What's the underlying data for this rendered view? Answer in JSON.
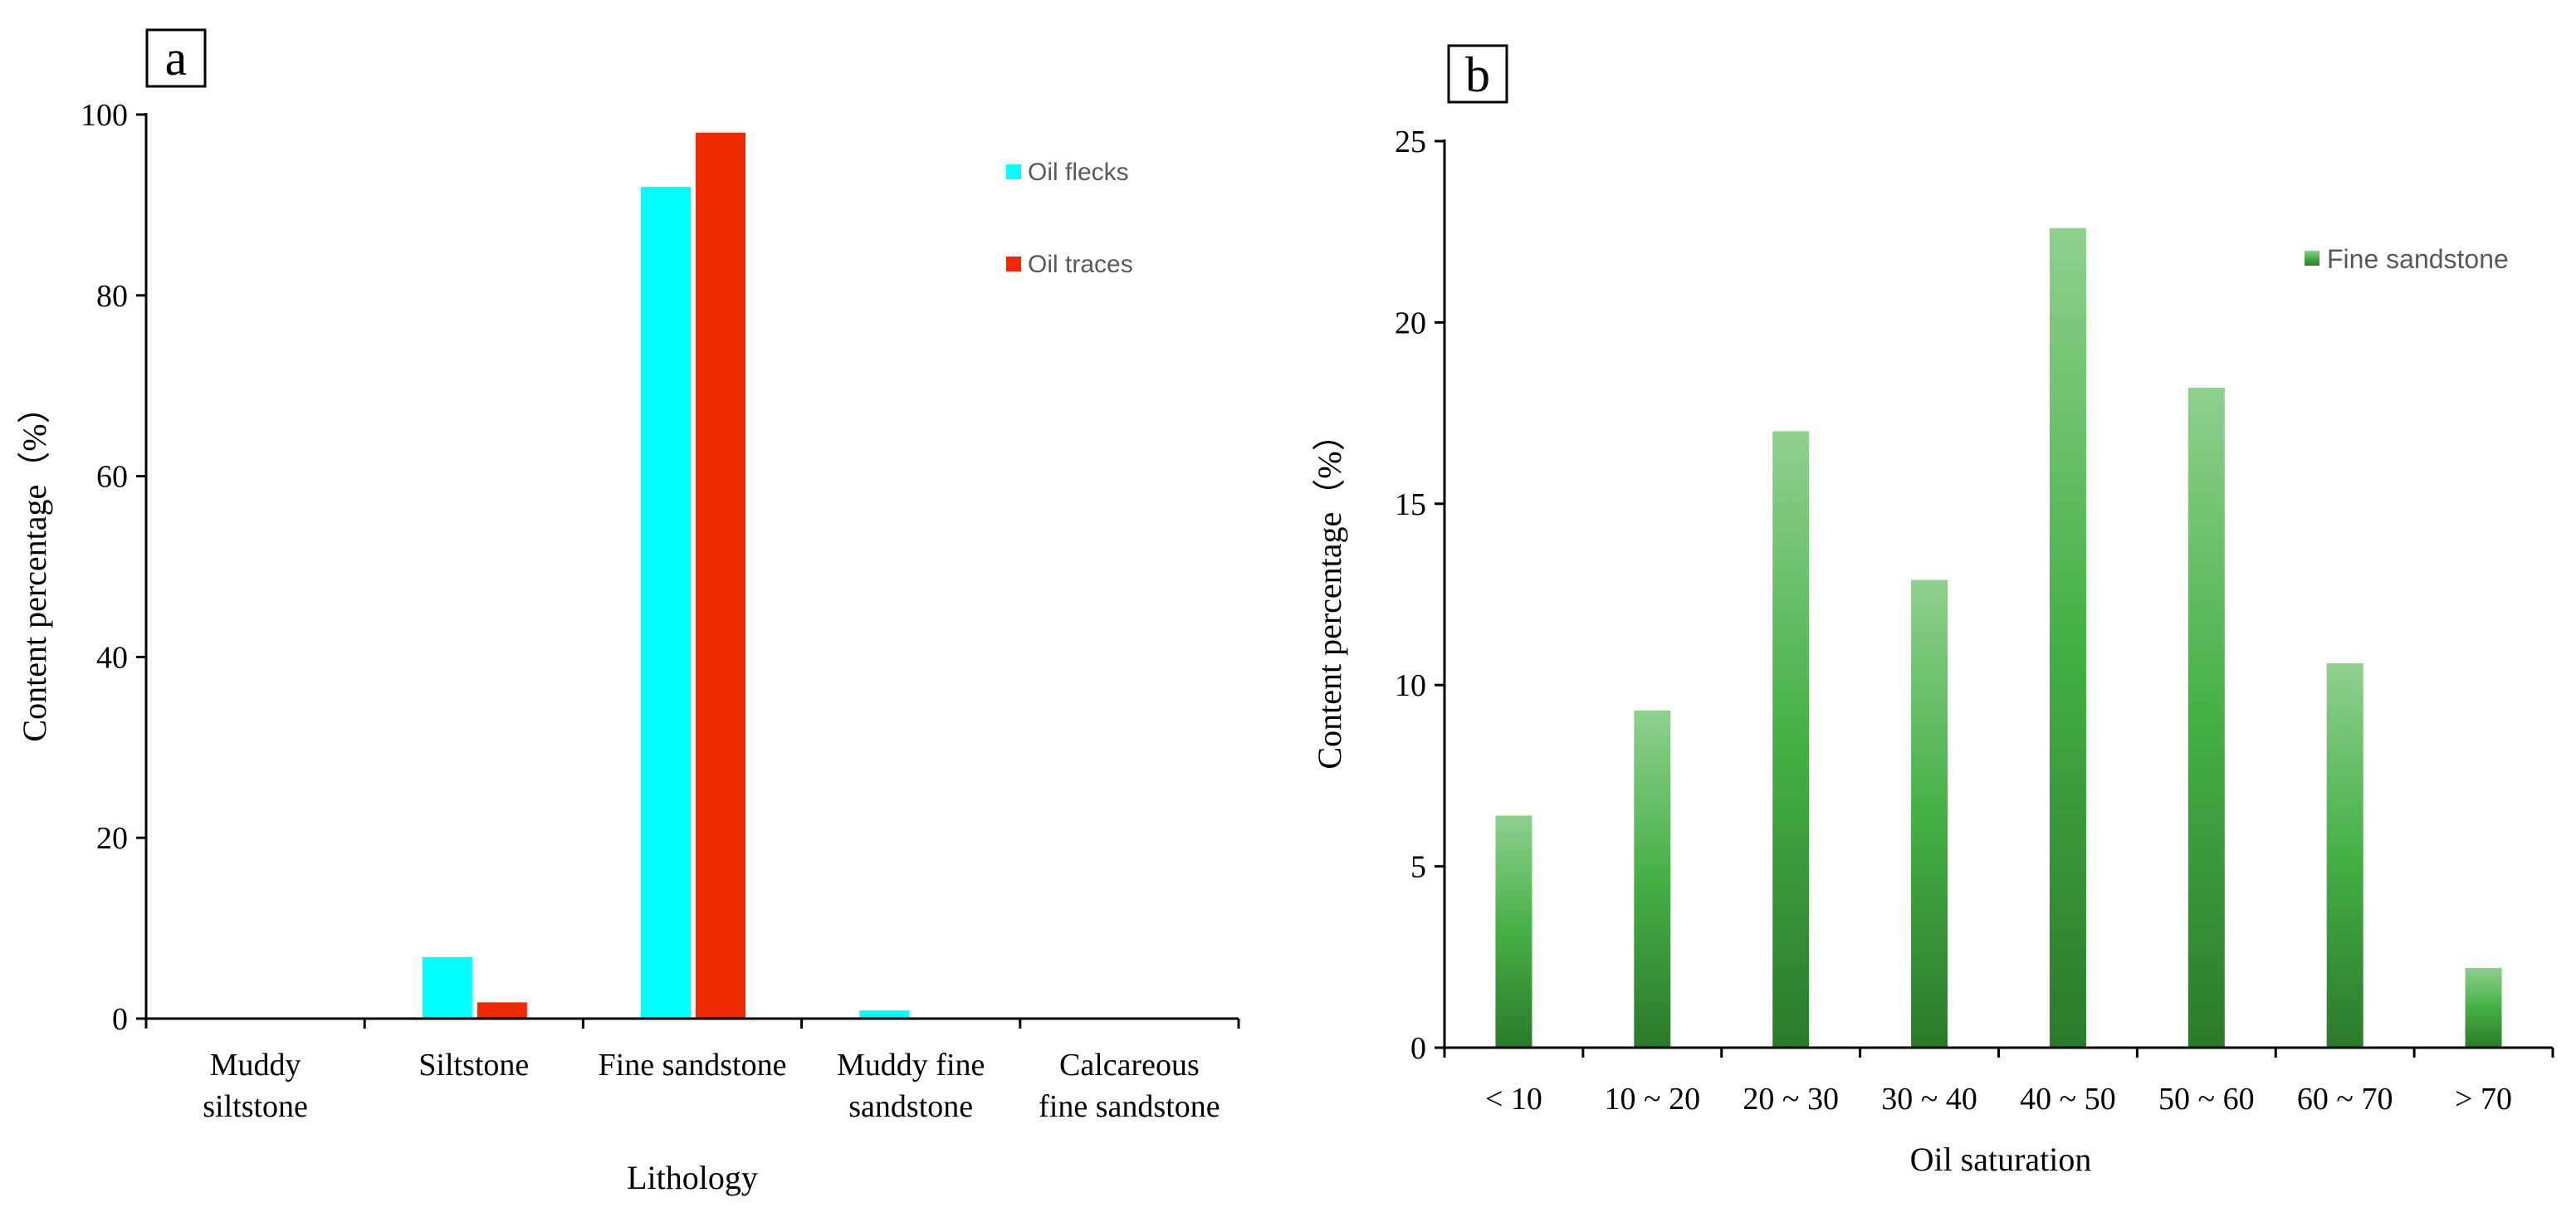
{
  "chart_data": [
    {
      "panel_label": "a",
      "type": "bar",
      "title": "",
      "xlabel": "Lithology",
      "ylabel": "Content percentage（%）",
      "ylim": [
        0,
        100
      ],
      "yticks": [
        "0",
        "20",
        "40",
        "60",
        "80",
        "100"
      ],
      "categories": [
        [
          "Muddy",
          "siltstone"
        ],
        [
          "Siltstone"
        ],
        [
          "Fine sandstone"
        ],
        [
          "Muddy fine",
          "sandstone"
        ],
        [
          "Calcareous",
          "fine sandstone"
        ]
      ],
      "series": [
        {
          "name": "Oil flecks",
          "color": "#00FFFF",
          "values": [
            0,
            6.8,
            92,
            0.9,
            0
          ]
        },
        {
          "name": "Oil traces",
          "color": "#EE2A00",
          "values": [
            0,
            1.8,
            98,
            0,
            0
          ]
        }
      ],
      "legend_position": "top-right",
      "grid": false
    },
    {
      "panel_label": "b",
      "type": "bar",
      "title": "",
      "xlabel": "Oil saturation",
      "ylabel": "Content percentage（%）",
      "ylim": [
        0,
        25
      ],
      "yticks": [
        "0",
        "5",
        "10",
        "15",
        "20",
        "25"
      ],
      "categories": [
        "< 10",
        "10 ~ 20",
        "20 ~ 30",
        "30 ~ 40",
        "40 ~ 50",
        "50 ~ 60",
        "60 ~ 70",
        "> 70"
      ],
      "series": [
        {
          "name": "Fine sandstone",
          "color": "#3DAE3D",
          "values": [
            6.4,
            9.3,
            17.0,
            12.9,
            22.6,
            18.2,
            10.6,
            2.2
          ]
        }
      ],
      "legend_position": "top-right",
      "grid": false
    }
  ]
}
